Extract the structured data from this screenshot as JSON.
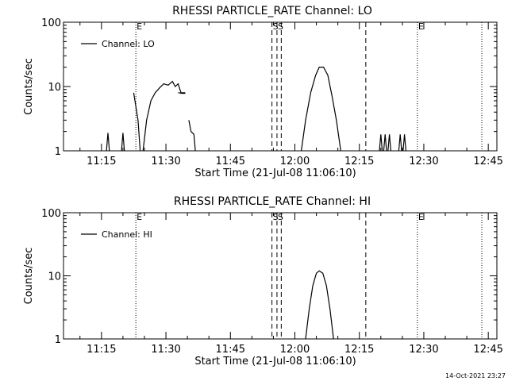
{
  "footer": {
    "timestamp": "14-Oct-2021 23:27"
  },
  "chart_data": [
    {
      "type": "line",
      "title": "RHESSI PARTICLE_RATE Channel: LO",
      "xlabel": "Start Time (21-Jul-08 11:06:10)",
      "ylabel": "Counts/sec",
      "y_scale": "log",
      "ylim": [
        1,
        100
      ],
      "y_ticks": [
        {
          "value": 1,
          "label": "1"
        },
        {
          "value": 10,
          "label": "10"
        },
        {
          "value": 100,
          "label": "100"
        }
      ],
      "xlim": [
        "11:06:10",
        "12:47:00"
      ],
      "x_ticks": [
        "11:15",
        "11:30",
        "11:45",
        "12:00",
        "12:15",
        "12:30",
        "12:45"
      ],
      "legend": {
        "placement": "top-left",
        "entries": [
          "Channel: LO"
        ]
      },
      "markers": [
        {
          "time": "11:23:00",
          "label": "E",
          "style": "dotted"
        },
        {
          "time": "11:54:40",
          "label": "S",
          "style": "dashed"
        },
        {
          "time": "11:55:50",
          "label": "S",
          "style": "dashed"
        },
        {
          "time": "11:56:50",
          "label": "",
          "style": "dashed"
        },
        {
          "time": "12:16:30",
          "label": "",
          "style": "dashed"
        },
        {
          "time": "12:28:30",
          "label": "E",
          "style": "dotted"
        },
        {
          "time": "12:43:30",
          "label": "",
          "style": "dotted"
        }
      ],
      "series": [
        {
          "name": "Channel: LO",
          "segments": [
            [
              [
                "11:16:10",
                1
              ],
              [
                "11:16:30",
                1.9
              ],
              [
                "11:16:50",
                1
              ]
            ],
            [
              [
                "11:19:40",
                1
              ],
              [
                "11:20:00",
                1.9
              ],
              [
                "11:20:20",
                1
              ]
            ],
            [
              [
                "11:22:30",
                8
              ],
              [
                "11:23:30",
                3
              ],
              [
                "11:24:00",
                1
              ]
            ],
            [
              [
                "11:24:40",
                1
              ],
              [
                "11:25:30",
                3
              ],
              [
                "11:26:30",
                6
              ],
              [
                "11:27:30",
                8
              ],
              [
                "11:28:30",
                9.5
              ],
              [
                "11:29:30",
                11
              ],
              [
                "11:30:30",
                10.5
              ],
              [
                "11:31:30",
                12
              ],
              [
                "11:32:10",
                10
              ],
              [
                "11:32:50",
                11
              ],
              [
                "11:33:30",
                8
              ],
              [
                "11:34:30",
                8
              ]
            ],
            [
              [
                "11:32:50",
                8
              ],
              [
                "11:33:50",
                7.8
              ],
              [
                "11:34:30",
                7.8
              ]
            ],
            [
              [
                "11:35:20",
                3
              ],
              [
                "11:35:50",
                2
              ],
              [
                "11:36:30",
                1.8
              ],
              [
                "11:36:50",
                1
              ]
            ],
            [
              [
                "12:01:30",
                1
              ],
              [
                "12:02:30",
                3
              ],
              [
                "12:03:40",
                8
              ],
              [
                "12:04:50",
                15
              ],
              [
                "12:05:40",
                20
              ],
              [
                "12:06:40",
                20
              ],
              [
                "12:07:40",
                15
              ],
              [
                "12:08:40",
                7
              ],
              [
                "12:09:40",
                3
              ],
              [
                "12:10:40",
                1
              ]
            ],
            [
              [
                "12:19:40",
                1
              ],
              [
                "12:20:00",
                1.8
              ],
              [
                "12:20:20",
                1
              ]
            ],
            [
              [
                "12:20:40",
                1
              ],
              [
                "12:21:00",
                1.8
              ],
              [
                "12:21:20",
                1
              ]
            ],
            [
              [
                "12:21:40",
                1
              ],
              [
                "12:22:00",
                1.8
              ],
              [
                "12:22:20",
                1
              ]
            ],
            [
              [
                "12:24:10",
                1
              ],
              [
                "12:24:30",
                1.8
              ],
              [
                "12:24:50",
                1
              ]
            ],
            [
              [
                "12:25:10",
                1
              ],
              [
                "12:25:30",
                1.8
              ],
              [
                "12:25:50",
                1
              ]
            ]
          ]
        }
      ]
    },
    {
      "type": "line",
      "title": "RHESSI PARTICLE_RATE Channel: HI",
      "xlabel": "Start Time (21-Jul-08 11:06:10)",
      "ylabel": "Counts/sec",
      "y_scale": "log",
      "ylim": [
        1,
        100
      ],
      "y_ticks": [
        {
          "value": 1,
          "label": "1"
        },
        {
          "value": 10,
          "label": "10"
        },
        {
          "value": 100,
          "label": "100"
        }
      ],
      "xlim": [
        "11:06:10",
        "12:47:00"
      ],
      "x_ticks": [
        "11:15",
        "11:30",
        "11:45",
        "12:00",
        "12:15",
        "12:30",
        "12:45"
      ],
      "legend": {
        "placement": "top-left",
        "entries": [
          "Channel: HI"
        ]
      },
      "markers": [
        {
          "time": "11:23:00",
          "label": "E",
          "style": "dotted"
        },
        {
          "time": "11:54:40",
          "label": "S",
          "style": "dashed"
        },
        {
          "time": "11:55:50",
          "label": "S",
          "style": "dashed"
        },
        {
          "time": "11:56:50",
          "label": "",
          "style": "dashed"
        },
        {
          "time": "12:16:30",
          "label": "",
          "style": "dashed"
        },
        {
          "time": "12:28:30",
          "label": "E",
          "style": "dotted"
        },
        {
          "time": "12:43:30",
          "label": "",
          "style": "dotted"
        }
      ],
      "series": [
        {
          "name": "Channel: HI",
          "segments": [
            [
              [
                "12:02:30",
                1
              ],
              [
                "12:03:20",
                3
              ],
              [
                "12:04:10",
                7
              ],
              [
                "12:05:00",
                11
              ],
              [
                "12:05:40",
                12
              ],
              [
                "12:06:30",
                11
              ],
              [
                "12:07:20",
                7
              ],
              [
                "12:08:10",
                3
              ],
              [
                "12:09:00",
                1
              ]
            ]
          ]
        }
      ]
    }
  ]
}
